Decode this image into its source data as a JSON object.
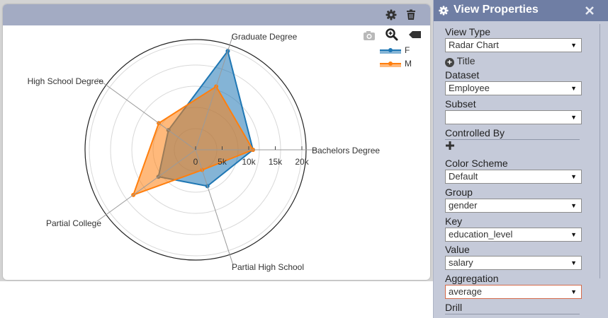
{
  "panel": {
    "header_icons": [
      "gear-icon",
      "trash-icon"
    ],
    "toolbar_icons": [
      "camera-icon",
      "zoom-icon",
      "tag-icon"
    ]
  },
  "chart_data": {
    "type": "radar",
    "axes": [
      "Bachelors Degree",
      "Graduate Degree",
      "High School Degree",
      "Partial College",
      "Partial High School"
    ],
    "radial_ticks": [
      "0",
      "5k",
      "10k",
      "15k",
      "20k"
    ],
    "rmax": 25000,
    "series": [
      {
        "name": "F",
        "color": "#1f77b4",
        "values": [
          13500,
          24500,
          7900,
          10800,
          9000
        ]
      },
      {
        "name": "M",
        "color": "#ff7f0e",
        "values": [
          13500,
          15700,
          10700,
          18100,
          5000
        ]
      }
    ],
    "legend_position": "top-right"
  },
  "properties": {
    "title": "View Properties",
    "view_type_label": "View Type",
    "view_type_value": "Radar Chart",
    "title_item": "Title",
    "dataset_label": "Dataset",
    "dataset_value": "Employee",
    "subset_label": "Subset",
    "subset_value": "",
    "controlled_by_label": "Controlled By",
    "color_scheme_label": "Color Scheme",
    "color_scheme_value": "Default",
    "group_label": "Group",
    "group_value": "gender",
    "key_label": "Key",
    "key_value": "education_level",
    "value_label": "Value",
    "value_value": "salary",
    "aggregation_label": "Aggregation",
    "aggregation_value": "average",
    "drill_label": "Drill"
  }
}
